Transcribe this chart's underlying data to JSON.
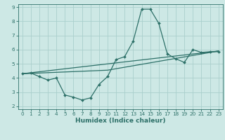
{
  "xlabel": "Humidex (Indice chaleur)",
  "xlim": [
    -0.5,
    23.5
  ],
  "ylim": [
    1.8,
    9.2
  ],
  "yticks": [
    2,
    3,
    4,
    5,
    6,
    7,
    8,
    9
  ],
  "xticks": [
    0,
    1,
    2,
    3,
    4,
    5,
    6,
    7,
    8,
    9,
    10,
    11,
    12,
    13,
    14,
    15,
    16,
    17,
    18,
    19,
    20,
    21,
    22,
    23
  ],
  "bg_color": "#cde8e5",
  "grid_color": "#aacfcc",
  "line_color": "#2d7068",
  "line1_x": [
    0,
    1,
    2,
    3,
    4,
    5,
    6,
    7,
    8,
    9,
    10,
    11,
    12,
    13,
    14,
    15,
    16,
    17,
    18,
    19,
    20,
    21,
    22,
    23
  ],
  "line1_y": [
    4.3,
    4.35,
    4.1,
    3.85,
    4.0,
    2.8,
    2.65,
    2.45,
    2.6,
    3.55,
    4.1,
    5.3,
    5.5,
    6.6,
    8.85,
    8.85,
    7.85,
    5.7,
    5.35,
    5.1,
    6.0,
    5.8,
    5.85,
    5.85
  ],
  "line2_x": [
    0,
    23
  ],
  "line2_y": [
    4.3,
    5.9
  ],
  "line3_x": [
    0,
    10,
    23
  ],
  "line3_y": [
    4.3,
    4.55,
    5.9
  ],
  "marker_size": 2.0,
  "line_width": 0.9,
  "tick_labelsize": 5.2,
  "xlabel_fontsize": 6.5
}
